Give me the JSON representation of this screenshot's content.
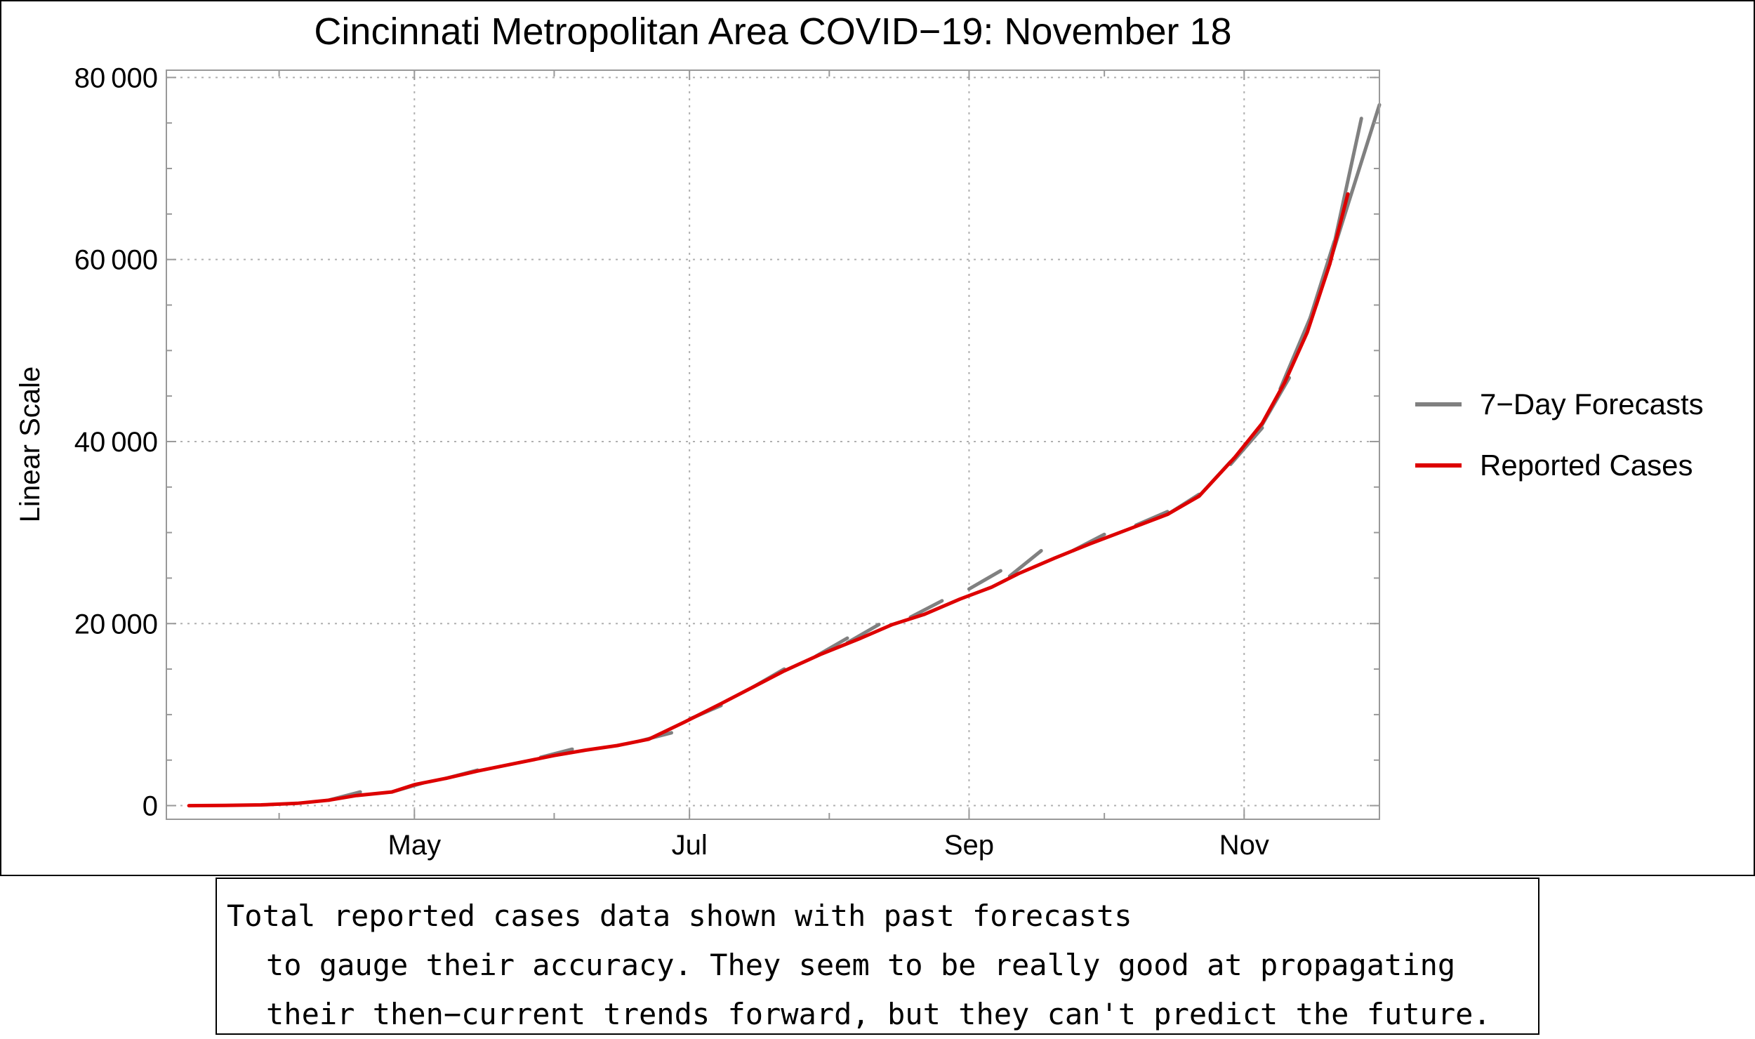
{
  "chart_data": {
    "type": "line",
    "title": "Cincinnati Metropolitan Area COVID−19: November 18",
    "ylabel": "Linear Scale",
    "xlabel": "",
    "y_ticks": [
      0,
      20000,
      40000,
      60000,
      80000
    ],
    "y_tick_labels": [
      "0",
      "20 000",
      "40 000",
      "60 000",
      "80 000"
    ],
    "ylim": [
      -1500,
      80800
    ],
    "x_ticks": [
      {
        "date": "2020-05-01",
        "label": "May"
      },
      {
        "date": "2020-07-01",
        "label": "Jul"
      },
      {
        "date": "2020-09-01",
        "label": "Sep"
      },
      {
        "date": "2020-11-01",
        "label": "Nov"
      }
    ],
    "xlim": [
      "2020-03-07",
      "2020-12-01"
    ],
    "grid": true,
    "legend_position": "right",
    "series": [
      {
        "name": "Reported Cases",
        "color": "#dd0000",
        "points": [
          [
            "2020-03-12",
            0
          ],
          [
            "2020-03-20",
            20
          ],
          [
            "2020-03-28",
            80
          ],
          [
            "2020-04-05",
            250
          ],
          [
            "2020-04-12",
            600
          ],
          [
            "2020-04-18",
            1100
          ],
          [
            "2020-04-26",
            1500
          ],
          [
            "2020-05-01",
            2300
          ],
          [
            "2020-05-08",
            3000
          ],
          [
            "2020-05-15",
            3800
          ],
          [
            "2020-05-22",
            4500
          ],
          [
            "2020-06-01",
            5500
          ],
          [
            "2020-06-08",
            6100
          ],
          [
            "2020-06-15",
            6600
          ],
          [
            "2020-06-22",
            7300
          ],
          [
            "2020-06-30",
            9200
          ],
          [
            "2020-07-08",
            11200
          ],
          [
            "2020-07-15",
            13000
          ],
          [
            "2020-07-22",
            14800
          ],
          [
            "2020-07-30",
            16600
          ],
          [
            "2020-08-08",
            18400
          ],
          [
            "2020-08-15",
            19900
          ],
          [
            "2020-08-22",
            21000
          ],
          [
            "2020-08-30",
            22700
          ],
          [
            "2020-09-06",
            24000
          ],
          [
            "2020-09-12",
            25500
          ],
          [
            "2020-09-20",
            27200
          ],
          [
            "2020-09-28",
            28800
          ],
          [
            "2020-10-06",
            30300
          ],
          [
            "2020-10-15",
            32000
          ],
          [
            "2020-10-22",
            34000
          ],
          [
            "2020-10-30",
            38300
          ],
          [
            "2020-11-05",
            42000
          ],
          [
            "2020-11-10",
            46500
          ],
          [
            "2020-11-15",
            52000
          ],
          [
            "2020-11-20",
            59500
          ],
          [
            "2020-11-24",
            67200
          ]
        ]
      },
      {
        "name": "7−Day Forecasts",
        "color": "#808080",
        "segments": [
          [
            [
              "2020-04-12",
              600
            ],
            [
              "2020-04-19",
              1500
            ]
          ],
          [
            [
              "2020-04-26",
              1500
            ],
            [
              "2020-05-03",
              2500
            ]
          ],
          [
            [
              "2020-05-08",
              3000
            ],
            [
              "2020-05-15",
              3900
            ]
          ],
          [
            [
              "2020-05-29",
              5300
            ],
            [
              "2020-06-05",
              6200
            ]
          ],
          [
            [
              "2020-06-20",
              7100
            ],
            [
              "2020-06-27",
              8000
            ]
          ],
          [
            [
              "2020-07-01",
              9500
            ],
            [
              "2020-07-08",
              11000
            ]
          ],
          [
            [
              "2020-07-15",
              13000
            ],
            [
              "2020-07-22",
              15000
            ]
          ],
          [
            [
              "2020-07-29",
              16400
            ],
            [
              "2020-08-05",
              18400
            ]
          ],
          [
            [
              "2020-08-05",
              17900
            ],
            [
              "2020-08-12",
              19900
            ]
          ],
          [
            [
              "2020-08-19",
              20700
            ],
            [
              "2020-08-26",
              22500
            ]
          ],
          [
            [
              "2020-09-01",
              23800
            ],
            [
              "2020-09-08",
              25800
            ]
          ],
          [
            [
              "2020-09-10",
              25200
            ],
            [
              "2020-09-17",
              28000
            ]
          ],
          [
            [
              "2020-09-24",
              28000
            ],
            [
              "2020-10-01",
              29800
            ]
          ],
          [
            [
              "2020-10-08",
              30800
            ],
            [
              "2020-10-15",
              32300
            ]
          ],
          [
            [
              "2020-10-15",
              32000
            ],
            [
              "2020-10-22",
              34200
            ]
          ],
          [
            [
              "2020-10-22",
              34000
            ],
            [
              "2020-10-29",
              37800
            ]
          ],
          [
            [
              "2020-10-29",
              37500
            ],
            [
              "2020-11-05",
              41500
            ]
          ],
          [
            [
              "2020-11-04",
              41000
            ],
            [
              "2020-11-11",
              47000
            ]
          ],
          [
            [
              "2020-11-09",
              45800
            ],
            [
              "2020-11-16",
              54000
            ]
          ],
          [
            [
              "2020-11-14",
              51000
            ],
            [
              "2020-11-21",
              62000
            ]
          ],
          [
            [
              "2020-11-17",
              55000
            ],
            [
              "2020-11-24",
              66000
            ]
          ],
          [
            [
              "2020-11-20",
              59500
            ],
            [
              "2020-11-27",
              75500
            ]
          ],
          [
            [
              "2020-11-24",
              66000
            ],
            [
              "2020-12-01",
              77000
            ]
          ]
        ]
      }
    ]
  },
  "legend": [
    {
      "label": "7−Day Forecasts",
      "color": "#808080"
    },
    {
      "label": "Reported Cases",
      "color": "#dd0000"
    }
  ],
  "caption": {
    "lines": [
      "Total reported cases data shown with past forecasts",
      "to gauge their accuracy. They seem to be really good at propagating",
      "their then−current trends forward, but they can't predict the future."
    ]
  }
}
